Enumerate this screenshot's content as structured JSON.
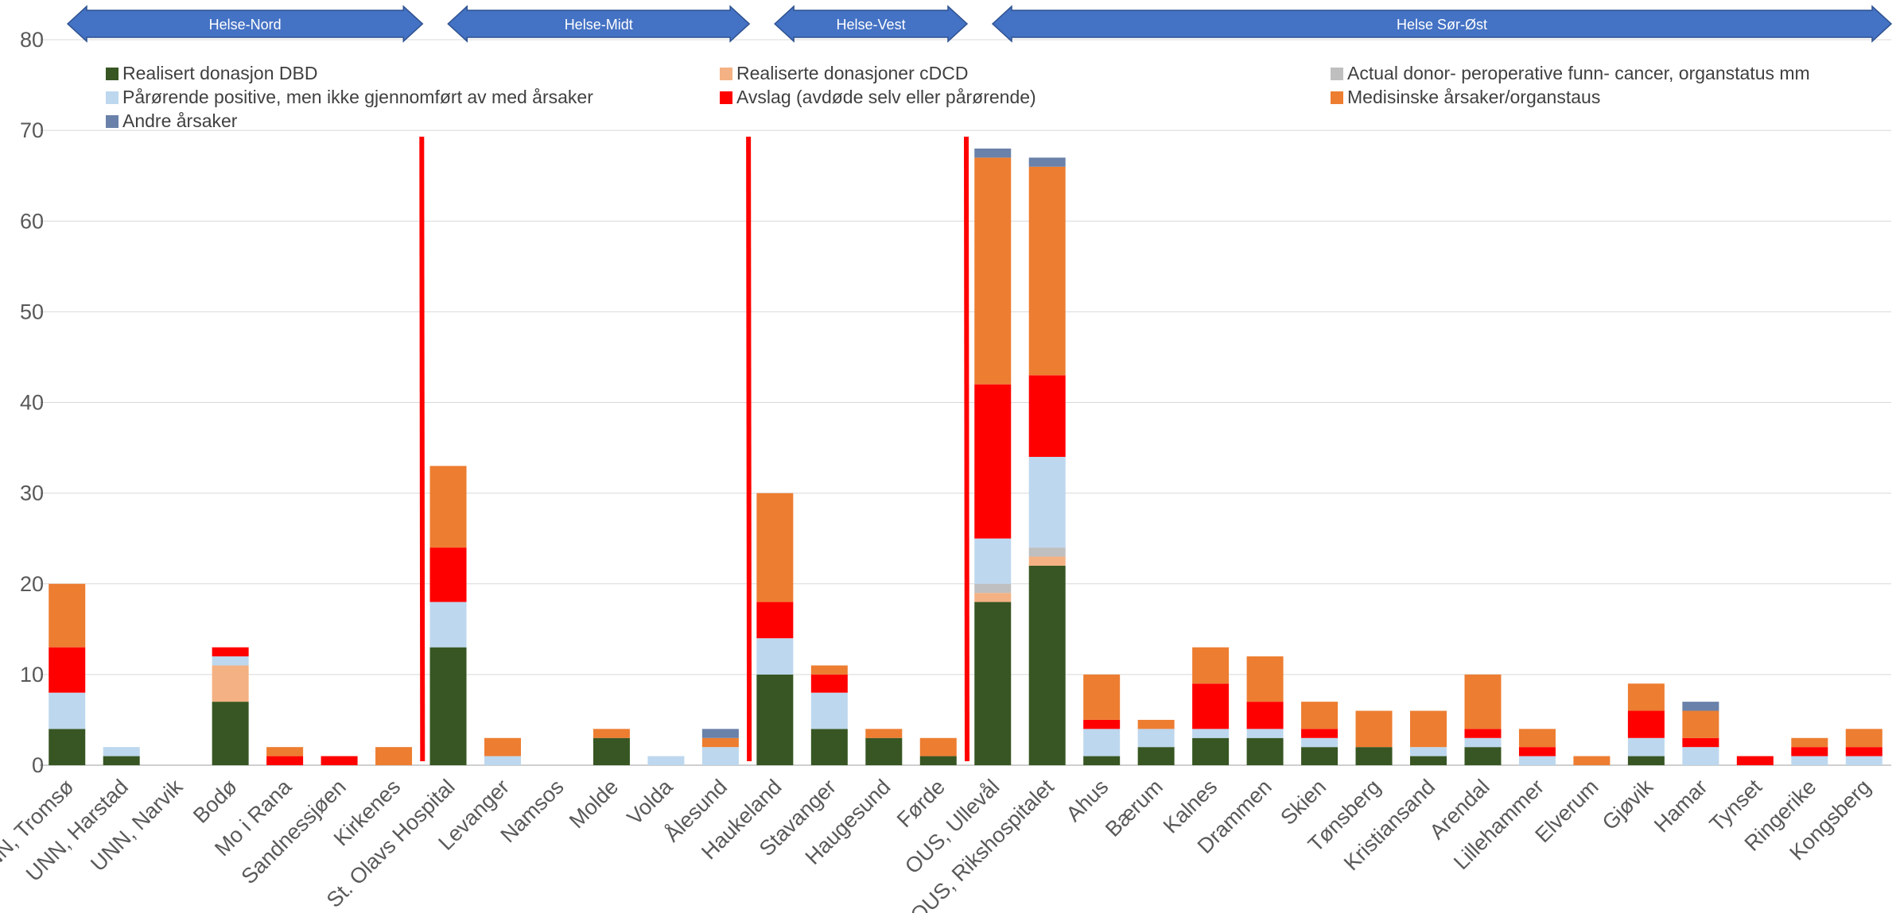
{
  "chart_data": {
    "type": "bar",
    "stacked": true,
    "ylim": [
      0,
      80
    ],
    "yticks": [
      0,
      10,
      20,
      30,
      40,
      50,
      60,
      70,
      80
    ],
    "grid": true,
    "legend_position": "top",
    "categories": [
      "UNN, Tromsø",
      "UNN, Harstad",
      "UNN, Narvik",
      "Bodø",
      "Mo i Rana",
      "Sandnessjøen",
      "Kirkenes",
      "St. Olavs Hospital",
      "Levanger",
      "Namsos",
      "Molde",
      "Volda",
      "Ålesund",
      "Haukeland",
      "Stavanger",
      "Haugesund",
      "Førde",
      "OUS, Ullevål",
      "OUS, Rikshospitalet",
      "Ahus",
      "Bærum",
      "Kalnes",
      "Drammen",
      "Skien",
      "Tønsberg",
      "Kristiansand",
      "Arendal",
      "Lillehammer",
      "Elverum",
      "Gjøvik",
      "Hamar",
      "Tynset",
      "Ringerike",
      "Kongsberg"
    ],
    "series": [
      {
        "name": "Realisert donasjon DBD",
        "color": "#375623",
        "values": [
          4,
          1,
          0,
          7,
          0,
          0,
          0,
          13,
          0,
          0,
          3,
          0,
          0,
          10,
          4,
          3,
          1,
          18,
          22,
          1,
          2,
          3,
          3,
          2,
          2,
          1,
          2,
          0,
          0,
          1,
          0,
          0,
          0,
          0
        ]
      },
      {
        "name": "Realiserte donasjoner cDCD",
        "color": "#F4B183",
        "values": [
          0,
          0,
          0,
          4,
          0,
          0,
          0,
          0,
          0,
          0,
          0,
          0,
          0,
          0,
          0,
          0,
          0,
          1,
          1,
          0,
          0,
          0,
          0,
          0,
          0,
          0,
          0,
          0,
          0,
          0,
          0,
          0,
          0,
          0
        ]
      },
      {
        "name": "Actual donor- peroperative funn- cancer, organstatus mm",
        "color": "#BFBFBF",
        "values": [
          0,
          0,
          0,
          0,
          0,
          0,
          0,
          0,
          0,
          0,
          0,
          0,
          0,
          0,
          0,
          0,
          0,
          1,
          1,
          0,
          0,
          0,
          0,
          0,
          0,
          0,
          0,
          0,
          0,
          0,
          0,
          0,
          0,
          0
        ]
      },
      {
        "name": "Pårørende positive, men ikke gjennomført av med årsaker",
        "color": "#BDD7EE",
        "values": [
          4,
          1,
          0,
          1,
          0,
          0,
          0,
          5,
          1,
          0,
          0,
          1,
          2,
          4,
          4,
          0,
          0,
          5,
          10,
          3,
          2,
          1,
          1,
          1,
          0,
          1,
          1,
          1,
          0,
          2,
          2,
          0,
          1,
          1
        ]
      },
      {
        "name": "Avslag (avdøde selv eller pårørende)",
        "color": "#FF0000",
        "values": [
          5,
          0,
          0,
          1,
          1,
          1,
          0,
          6,
          0,
          0,
          0,
          0,
          0,
          4,
          2,
          0,
          0,
          17,
          9,
          1,
          0,
          5,
          3,
          1,
          0,
          0,
          1,
          1,
          0,
          3,
          1,
          1,
          1,
          1
        ]
      },
      {
        "name": "Medisinske årsaker/organstaus",
        "color": "#ED7D31",
        "values": [
          7,
          0,
          0,
          0,
          1,
          0,
          2,
          9,
          2,
          0,
          1,
          0,
          1,
          12,
          1,
          1,
          2,
          25,
          23,
          5,
          1,
          4,
          5,
          3,
          4,
          4,
          6,
          2,
          1,
          3,
          3,
          0,
          1,
          2
        ]
      },
      {
        "name": "Andre årsaker",
        "color": "#6A81A9",
        "values": [
          0,
          0,
          0,
          0,
          0,
          0,
          0,
          0,
          0,
          0,
          0,
          0,
          1,
          0,
          0,
          0,
          0,
          1,
          1,
          0,
          0,
          0,
          0,
          0,
          0,
          0,
          0,
          0,
          0,
          0,
          1,
          0,
          0,
          0
        ]
      }
    ],
    "regions": [
      {
        "name": "Helse-Nord",
        "from": 0,
        "to": 6
      },
      {
        "name": "Helse-Midt",
        "from": 7,
        "to": 12
      },
      {
        "name": "Helse-Vest",
        "from": 13,
        "to": 16
      },
      {
        "name": "Helse Sør-Øst",
        "from": 17,
        "to": 33
      }
    ],
    "separators_after": [
      6,
      12,
      16
    ],
    "colors": {
      "region_arrow": "#4472C4",
      "separator": "#FF0000",
      "grid": "#D9D9D9",
      "axis": "#BFBFBF"
    }
  }
}
